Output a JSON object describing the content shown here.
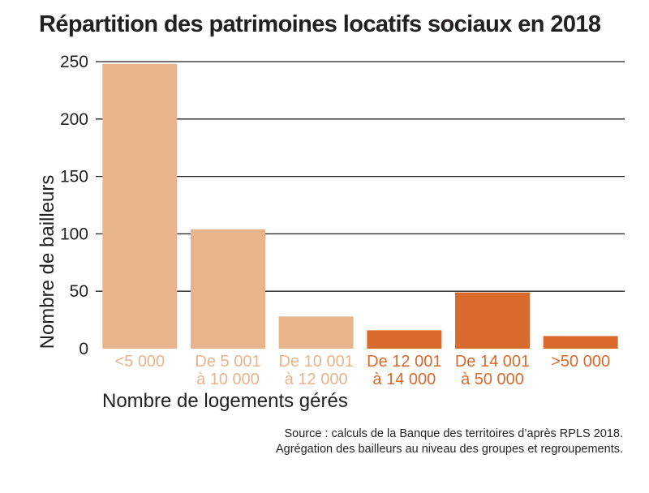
{
  "title": "Répartition des patrimoines locatifs sociaux en 2018",
  "source": [
    "Source : calculs de la Banque des territoires d’après RPLS 2018.",
    "Agrégation des bailleurs au niveau des groupes et regroupements."
  ],
  "colors": {
    "light": "#e8b48c",
    "dark": "#d86a2c",
    "grid": "#231f20"
  },
  "chart_data": {
    "type": "bar",
    "title": "Répartition des patrimoines locatifs sociaux en 2018",
    "xlabel": "Nombre de logements gérés",
    "ylabel": "Nombre de bailleurs",
    "ylim": [
      0,
      250
    ],
    "yticks": [
      0,
      50,
      100,
      150,
      200,
      250
    ],
    "grid": true,
    "categories": [
      [
        "<5 000"
      ],
      [
        "De 5 001",
        "à 10 000"
      ],
      [
        "De 10 001",
        "à 12 000"
      ],
      [
        "De 12 001",
        "à 14 000"
      ],
      [
        "De 14 001",
        "à 50 000"
      ],
      [
        ">50 000"
      ]
    ],
    "values": [
      248,
      104,
      28,
      16,
      49,
      11
    ],
    "bar_colors": [
      "light",
      "light",
      "light",
      "dark",
      "dark",
      "dark"
    ]
  }
}
